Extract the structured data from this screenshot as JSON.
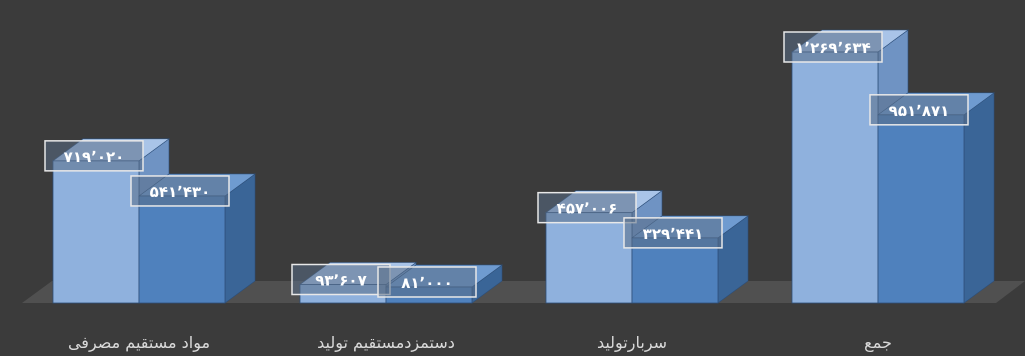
{
  "chart_data": {
    "type": "bar",
    "categories": [
      "مواد مستقیم مصرفی",
      "دستمزدمستقیم تولید",
      "سربارتولید",
      "جمع"
    ],
    "series": [
      {
        "values": [
          719020,
          93607,
          457006,
          1269634
        ],
        "labels": [
          "۷۱۹٬۰۲۰",
          "۹۳٬۶۰۷",
          "۴۵۷٬۰۰۶",
          "۱٬۲۶۹٬۶۳۴"
        ]
      },
      {
        "values": [
          541430,
          81000,
          329441,
          951871
        ],
        "labels": [
          "۵۴۱٬۴۳۰",
          "۸۱٬۰۰۰",
          "۳۲۹٬۴۴۱",
          "۹۵۱٬۸۷۱"
        ]
      }
    ],
    "title": "",
    "xlabel": "",
    "ylabel": "",
    "ylim": [
      0,
      1269634
    ],
    "grid": false,
    "legend": "none",
    "colors": {
      "background": "#3b3b3b",
      "floor": "#505050",
      "series1_front": "#8fb1dd",
      "series1_top": "#a9c4e8",
      "series1_side": "#6f93c3",
      "series2_front": "#4f81bd",
      "series2_top": "#6f9bd0",
      "series2_side": "#3a6597",
      "label_box_stroke": "#e8e8e8",
      "label_box_fill": "#5a6e86",
      "axis_text": "#d9d9d9"
    }
  }
}
